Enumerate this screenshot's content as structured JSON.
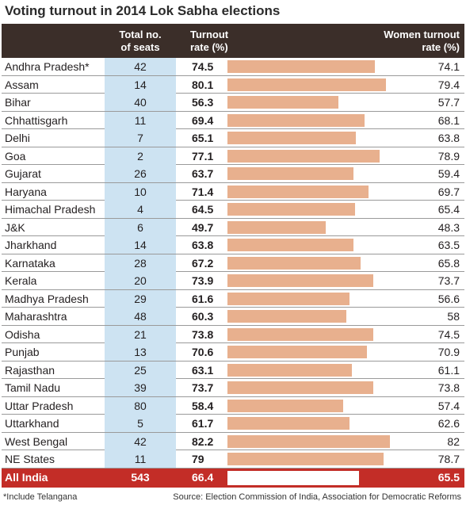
{
  "title": "Voting turnout in 2014 Lok Sabha elections",
  "colors": {
    "header_bg": "#3b2e29",
    "seats_bg": "#cde3f2",
    "bar": "#e8b08e",
    "total_bg": "#c32d27"
  },
  "chart_data": {
    "type": "table",
    "columns": [
      "",
      "Total no. of seats",
      "Turnout rate (%)",
      "Women turnout rate (%)"
    ],
    "header": {
      "seats_line1": "Total no.",
      "seats_line2": "of seats",
      "turnout_line1": "Turnout",
      "turnout_line2": "rate (%)",
      "women_line1": "Women turnout",
      "women_line2": "rate (%)"
    },
    "rows": [
      {
        "state": "Andhra Pradesh*",
        "seats": "42",
        "turnout": "74.5",
        "women": "74.1"
      },
      {
        "state": "Assam",
        "seats": "14",
        "turnout": "80.1",
        "women": "79.4"
      },
      {
        "state": "Bihar",
        "seats": "40",
        "turnout": "56.3",
        "women": "57.7"
      },
      {
        "state": "Chhattisgarh",
        "seats": "11",
        "turnout": "69.4",
        "women": "68.1"
      },
      {
        "state": "Delhi",
        "seats": "7",
        "turnout": "65.1",
        "women": "63.8"
      },
      {
        "state": "Goa",
        "seats": "2",
        "turnout": "77.1",
        "women": "78.9"
      },
      {
        "state": "Gujarat",
        "seats": "26",
        "turnout": "63.7",
        "women": "59.4"
      },
      {
        "state": "Haryana",
        "seats": "10",
        "turnout": "71.4",
        "women": "69.7"
      },
      {
        "state": "Himachal Pradesh",
        "seats": "4",
        "turnout": "64.5",
        "women": "65.4"
      },
      {
        "state": "J&K",
        "seats": "6",
        "turnout": "49.7",
        "women": "48.3"
      },
      {
        "state": "Jharkhand",
        "seats": "14",
        "turnout": "63.8",
        "women": "63.5"
      },
      {
        "state": "Karnataka",
        "seats": "28",
        "turnout": "67.2",
        "women": "65.8"
      },
      {
        "state": "Kerala",
        "seats": "20",
        "turnout": "73.9",
        "women": "73.7"
      },
      {
        "state": "Madhya Pradesh",
        "seats": "29",
        "turnout": "61.6",
        "women": "56.6"
      },
      {
        "state": "Maharashtra",
        "seats": "48",
        "turnout": "60.3",
        "women": "58"
      },
      {
        "state": "Odisha",
        "seats": "21",
        "turnout": "73.8",
        "women": "74.5"
      },
      {
        "state": "Punjab",
        "seats": "13",
        "turnout": "70.6",
        "women": "70.9"
      },
      {
        "state": "Rajasthan",
        "seats": "25",
        "turnout": "63.1",
        "women": "61.1"
      },
      {
        "state": "Tamil Nadu",
        "seats": "39",
        "turnout": "73.7",
        "women": "73.8"
      },
      {
        "state": "Uttar Pradesh",
        "seats": "80",
        "turnout": "58.4",
        "women": "57.4"
      },
      {
        "state": "Uttarkhand",
        "seats": "5",
        "turnout": "61.7",
        "women": "62.6"
      },
      {
        "state": "West Bengal",
        "seats": "42",
        "turnout": "82.2",
        "women": "82"
      },
      {
        "state": "NE States",
        "seats": "11",
        "turnout": "79",
        "women": "78.7"
      }
    ],
    "total": {
      "state": "All India",
      "seats": "543",
      "turnout": "66.4",
      "women": "65.5"
    }
  },
  "footnote": "*Include Telangana",
  "source": "Source: Election Commission of India, Association for Democratic Reforms"
}
